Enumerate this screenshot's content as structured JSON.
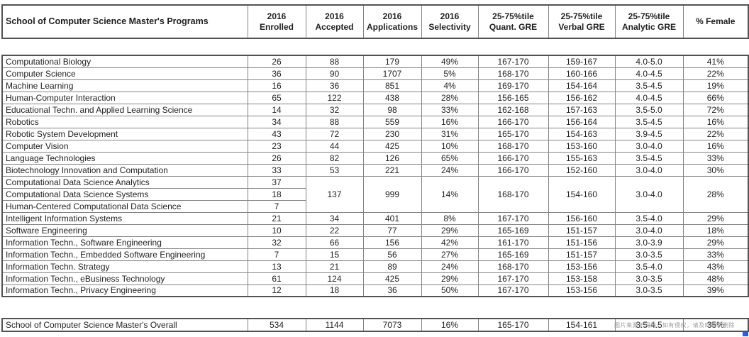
{
  "table": {
    "title_header": "School of Computer Science Master's Programs",
    "columns": [
      "2016\nEnrolled",
      "2016\nAccepted",
      "2016\nApplications",
      "2016\nSelectivity",
      "25-75%tile\nQuant. GRE",
      "25-75%tile\nVerbal GRE",
      "25-75%tile\nAnalytic GRE",
      "% Female"
    ],
    "rows": [
      {
        "program": "Computational Biology",
        "enrolled": "26",
        "accepted": "88",
        "applications": "179",
        "selectivity": "49%",
        "quant": "167-170",
        "verbal": "159-167",
        "analytic": "4.0-5.0",
        "female": "41%"
      },
      {
        "program": "Computer Science",
        "enrolled": "36",
        "accepted": "90",
        "applications": "1707",
        "selectivity": "5%",
        "quant": "168-170",
        "verbal": "160-166",
        "analytic": "4.0-4.5",
        "female": "22%"
      },
      {
        "program": "Machine Learning",
        "enrolled": "16",
        "accepted": "36",
        "applications": "851",
        "selectivity": "4%",
        "quant": "169-170",
        "verbal": "154-164",
        "analytic": "3.5-4.5",
        "female": "19%"
      },
      {
        "program": "Human-Computer Interaction",
        "enrolled": "65",
        "accepted": "122",
        "applications": "438",
        "selectivity": "28%",
        "quant": "156-165",
        "verbal": "156-162",
        "analytic": "4.0-4.5",
        "female": "66%"
      },
      {
        "program": "Educational Techn. and Applied Learning Science",
        "enrolled": "14",
        "accepted": "32",
        "applications": "98",
        "selectivity": "33%",
        "quant": "162-168",
        "verbal": "157-163",
        "analytic": "3.5-5.0",
        "female": "72%"
      },
      {
        "program": "Robotics",
        "enrolled": "34",
        "accepted": "88",
        "applications": "559",
        "selectivity": "16%",
        "quant": "166-170",
        "verbal": "156-164",
        "analytic": "3.5-4.5",
        "female": "16%"
      },
      {
        "program": "Robotic System Development",
        "enrolled": "43",
        "accepted": "72",
        "applications": "230",
        "selectivity": "31%",
        "quant": "165-170",
        "verbal": "154-163",
        "analytic": "3.9-4.5",
        "female": "22%"
      },
      {
        "program": "Computer Vision",
        "enrolled": "23",
        "accepted": "44",
        "applications": "425",
        "selectivity": "10%",
        "quant": "168-170",
        "verbal": "153-160",
        "analytic": "3.0-4.0",
        "female": "16%"
      },
      {
        "program": "Language Technologies",
        "enrolled": "26",
        "accepted": "82",
        "applications": "126",
        "selectivity": "65%",
        "quant": "166-170",
        "verbal": "155-163",
        "analytic": "3.5-4.5",
        "female": "33%"
      },
      {
        "program": "Biotechnology Innovation and Computation",
        "enrolled": "33",
        "accepted": "53",
        "applications": "221",
        "selectivity": "24%",
        "quant": "166-170",
        "verbal": "152-160",
        "analytic": "3.0-4.0",
        "female": "30%"
      },
      {
        "program": "Computational Data Science Analytics",
        "enrolled": "37",
        "span": 3,
        "accepted": "137",
        "applications": "999",
        "selectivity": "14%",
        "quant": "168-170",
        "verbal": "154-160",
        "analytic": "3.0-4.0",
        "female": "28%"
      },
      {
        "program": "Computational Data Science Systems",
        "enrolled": "18",
        "in_span": true
      },
      {
        "program": "Human-Centered Computational Data Science",
        "enrolled": "7",
        "in_span": true
      },
      {
        "program": "Intelligent Information Systems",
        "enrolled": "21",
        "accepted": "34",
        "applications": "401",
        "selectivity": "8%",
        "quant": "167-170",
        "verbal": "156-160",
        "analytic": "3.5-4.0",
        "female": "29%"
      },
      {
        "program": "Software Engineering",
        "enrolled": "10",
        "accepted": "22",
        "applications": "77",
        "selectivity": "29%",
        "quant": "165-169",
        "verbal": "151-157",
        "analytic": "3.0-4.0",
        "female": "18%"
      },
      {
        "program": "Information Techn., Software Engineering",
        "enrolled": "32",
        "accepted": "66",
        "applications": "156",
        "selectivity": "42%",
        "quant": "161-170",
        "verbal": "151-156",
        "analytic": "3.0-3.9",
        "female": "29%"
      },
      {
        "program": "Information Techn., Embedded Software Engineering",
        "enrolled": "7",
        "accepted": "15",
        "applications": "56",
        "selectivity": "27%",
        "quant": "165-169",
        "verbal": "151-157",
        "analytic": "3.0-3.5",
        "female": "33%"
      },
      {
        "program": "Information Techn. Strategy",
        "enrolled": "13",
        "accepted": "21",
        "applications": "89",
        "selectivity": "24%",
        "quant": "168-170",
        "verbal": "153-156",
        "analytic": "3.5-4.0",
        "female": "43%"
      },
      {
        "program": "Information Techn., eBusiness Technology",
        "enrolled": "61",
        "accepted": "124",
        "applications": "425",
        "selectivity": "29%",
        "quant": "167-170",
        "verbal": "153-158",
        "analytic": "3.0-3.5",
        "female": "48%"
      },
      {
        "program": "Information Techn., Privacy Engineering",
        "enrolled": "12",
        "accepted": "18",
        "applications": "36",
        "selectivity": "50%",
        "quant": "167-170",
        "verbal": "153-156",
        "analytic": "3.0-3.5",
        "female": "39%"
      }
    ],
    "overall": {
      "program": "School of Computer Science Master's Overall",
      "enrolled": "534",
      "accepted": "1144",
      "applications": "7073",
      "selectivity": "16%",
      "quant": "165-170",
      "verbal": "154-161",
      "analytic": "3.5-4.5",
      "female": "35%"
    },
    "watermark": "图片来源于网络，如有侵权，请及时联系删除",
    "colors": {
      "border_inner": "#848484",
      "border_outer": "#525252",
      "text": "#1f1f1f",
      "watermark_text": "#9b9b9b",
      "corner_mark": "#2b5cd9"
    }
  }
}
